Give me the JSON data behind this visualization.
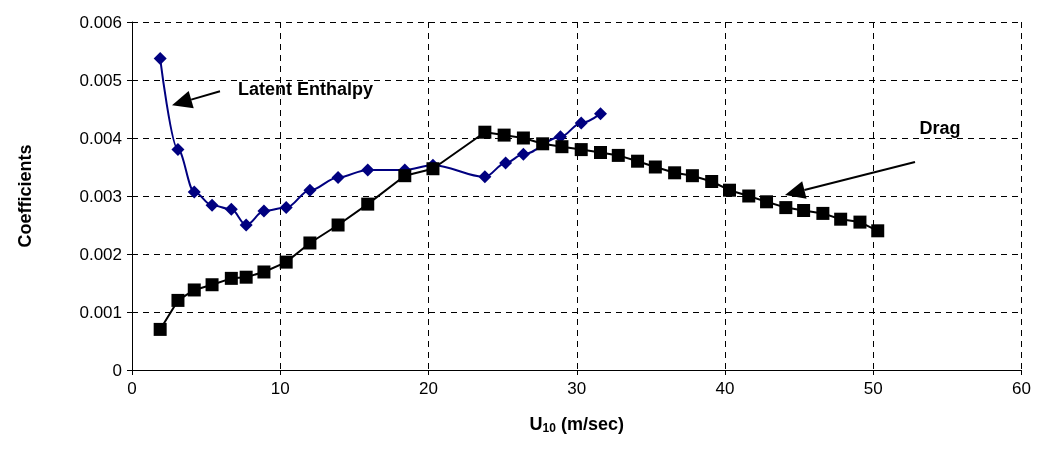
{
  "chart_data": {
    "type": "line",
    "xlabel": "U$_{10}$ (m/sec)",
    "ylabel": "Coefficients",
    "xlim": [
      0,
      60
    ],
    "xticks": [
      0,
      10,
      20,
      30,
      40,
      50,
      60
    ],
    "ylim": [
      0,
      0.006
    ],
    "yticks": [
      0,
      0.001,
      0.002,
      0.003,
      0.004,
      0.005,
      0.006
    ],
    "grid": true,
    "series": [
      {
        "color": "#000080",
        "marker": "diamond",
        "x": [
          1.9,
          3.1,
          4.2,
          5.4,
          6.7,
          7.7,
          8.9,
          10.4,
          12.0,
          13.9,
          15.9,
          18.4,
          20.3,
          23.8,
          25.2,
          26.4,
          28.9,
          30.3,
          31.6
        ],
        "values": [
          0.00537,
          0.0038,
          0.00307,
          0.00284,
          0.00277,
          0.0025,
          0.00274,
          0.0028,
          0.0031,
          0.00332,
          0.00345,
          0.00345,
          0.00353,
          0.00333,
          0.00357,
          0.00372,
          0.00402,
          0.00426,
          0.00442
        ]
      },
      {
        "color": "#000000",
        "marker": "square",
        "x": [
          1.9,
          3.1,
          4.2,
          5.4,
          6.7,
          7.7,
          8.9,
          10.4,
          12.0,
          13.9,
          15.9,
          18.4,
          20.3,
          23.8,
          25.1,
          26.4,
          27.7,
          29.0,
          30.3,
          31.6,
          32.8,
          34.1,
          35.3,
          36.6,
          37.8,
          39.1,
          40.3,
          41.6,
          42.8,
          44.1,
          45.3,
          46.6,
          47.8,
          49.1,
          50.3
        ],
        "values": [
          0.0007,
          0.0012,
          0.00138,
          0.00147,
          0.00158,
          0.0016,
          0.00169,
          0.00186,
          0.00219,
          0.0025,
          0.00286,
          0.00335,
          0.00347,
          0.0041,
          0.00405,
          0.004,
          0.0039,
          0.00385,
          0.0038,
          0.00375,
          0.0037,
          0.0036,
          0.0035,
          0.0034,
          0.00335,
          0.00325,
          0.0031,
          0.003,
          0.0029,
          0.0028,
          0.00275,
          0.0027,
          0.0026,
          0.00255,
          0.0024
        ]
      }
    ],
    "annotations": [
      "Latent Enthalpy",
      "Drag"
    ]
  }
}
